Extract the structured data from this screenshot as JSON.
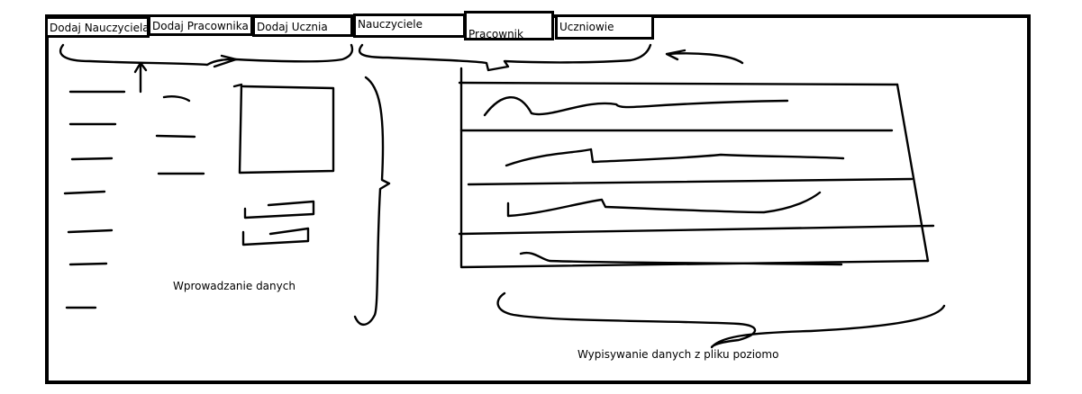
{
  "tabs": [
    {
      "label": "Dodaj Nauczyciela"
    },
    {
      "label": "Dodaj Pracownika"
    },
    {
      "label": "Dodaj Ucznia"
    },
    {
      "label": "Nauczyciele"
    },
    {
      "label": "Pracownik"
    },
    {
      "label": "Uczniowie"
    }
  ],
  "captions": {
    "input_area": "Wprowadzanie danych",
    "output_area": "Wypisywanie danych z pliku poziomo"
  }
}
